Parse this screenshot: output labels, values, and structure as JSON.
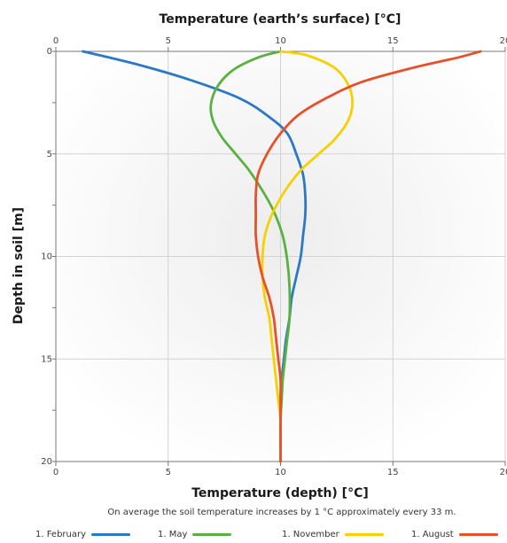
{
  "chart_data": {
    "type": "line",
    "title": "Temperature (earth’s surface) [°C]",
    "xlabel": "Temperature (depth) [°C]",
    "ylabel": "Depth in soil [m]",
    "caption": "On average the soil temperature increases by 1 °C approximately every 33 m.",
    "xlim": [
      0,
      20
    ],
    "ylim": [
      0,
      20
    ],
    "x_ticks": [
      "0",
      "5",
      "10",
      "15",
      "20"
    ],
    "y_ticks": [
      "0",
      "5",
      "10",
      "15",
      "20"
    ],
    "y_inverted": true,
    "grid": true,
    "legend_position": "bottom",
    "series": [
      {
        "name": "1. February",
        "color": "#2a78c6",
        "points": [
          [
            1.2,
            0
          ],
          [
            3.5,
            0.6
          ],
          [
            6.0,
            1.4
          ],
          [
            8.2,
            2.3
          ],
          [
            9.5,
            3.2
          ],
          [
            10.3,
            4.0
          ],
          [
            10.7,
            5.0
          ],
          [
            11.0,
            6.0
          ],
          [
            11.1,
            7.0
          ],
          [
            11.1,
            8.0
          ],
          [
            11.0,
            9.0
          ],
          [
            10.9,
            10.0
          ],
          [
            10.7,
            11.0
          ],
          [
            10.5,
            12.0
          ],
          [
            10.4,
            13.0
          ],
          [
            10.25,
            14.0
          ],
          [
            10.15,
            15.0
          ],
          [
            10.05,
            16.0
          ],
          [
            10.0,
            17.0
          ],
          [
            10.0,
            18.0
          ],
          [
            10.0,
            19.0
          ],
          [
            10.0,
            20.0
          ]
        ]
      },
      {
        "name": "1. May",
        "color": "#5ab040",
        "points": [
          [
            10.0,
            0
          ],
          [
            9.0,
            0.3
          ],
          [
            7.9,
            0.9
          ],
          [
            7.2,
            1.7
          ],
          [
            6.9,
            2.6
          ],
          [
            7.0,
            3.4
          ],
          [
            7.4,
            4.2
          ],
          [
            8.0,
            5.0
          ],
          [
            8.6,
            5.8
          ],
          [
            9.2,
            6.8
          ],
          [
            9.7,
            7.8
          ],
          [
            10.1,
            9.0
          ],
          [
            10.3,
            10.2
          ],
          [
            10.4,
            11.5
          ],
          [
            10.4,
            13.0
          ],
          [
            10.3,
            14.0
          ],
          [
            10.2,
            15.0
          ],
          [
            10.1,
            16.0
          ],
          [
            10.05,
            17.0
          ],
          [
            10.0,
            18.0
          ],
          [
            10.0,
            19.0
          ],
          [
            10.0,
            20.0
          ]
        ]
      },
      {
        "name": "1. November",
        "color": "#f6d000",
        "points": [
          [
            10.0,
            0
          ],
          [
            11.2,
            0.2
          ],
          [
            12.4,
            0.8
          ],
          [
            13.0,
            1.6
          ],
          [
            13.2,
            2.5
          ],
          [
            13.0,
            3.4
          ],
          [
            12.4,
            4.3
          ],
          [
            11.7,
            5.0
          ],
          [
            10.9,
            5.8
          ],
          [
            10.2,
            6.8
          ],
          [
            9.6,
            8.0
          ],
          [
            9.3,
            9.0
          ],
          [
            9.2,
            10.0
          ],
          [
            9.2,
            11.0
          ],
          [
            9.3,
            12.0
          ],
          [
            9.5,
            13.0
          ],
          [
            9.6,
            14.0
          ],
          [
            9.7,
            15.0
          ],
          [
            9.8,
            16.0
          ],
          [
            9.9,
            17.0
          ],
          [
            10.0,
            18.0
          ],
          [
            10.0,
            19.0
          ],
          [
            10.0,
            20.0
          ]
        ]
      },
      {
        "name": "1. August",
        "color": "#e8502a",
        "points": [
          [
            18.9,
            0
          ],
          [
            17.9,
            0.3
          ],
          [
            15.9,
            0.8
          ],
          [
            13.6,
            1.5
          ],
          [
            12.0,
            2.3
          ],
          [
            10.8,
            3.1
          ],
          [
            10.0,
            4.0
          ],
          [
            9.4,
            5.0
          ],
          [
            9.0,
            6.0
          ],
          [
            8.9,
            7.0
          ],
          [
            8.9,
            8.0
          ],
          [
            8.9,
            9.0
          ],
          [
            9.0,
            10.0
          ],
          [
            9.2,
            11.0
          ],
          [
            9.5,
            12.0
          ],
          [
            9.7,
            13.0
          ],
          [
            9.8,
            14.0
          ],
          [
            9.9,
            15.0
          ],
          [
            10.0,
            16.0
          ],
          [
            10.0,
            17.0
          ],
          [
            10.0,
            18.0
          ],
          [
            10.0,
            19.0
          ],
          [
            10.0,
            20.0
          ]
        ]
      }
    ]
  }
}
